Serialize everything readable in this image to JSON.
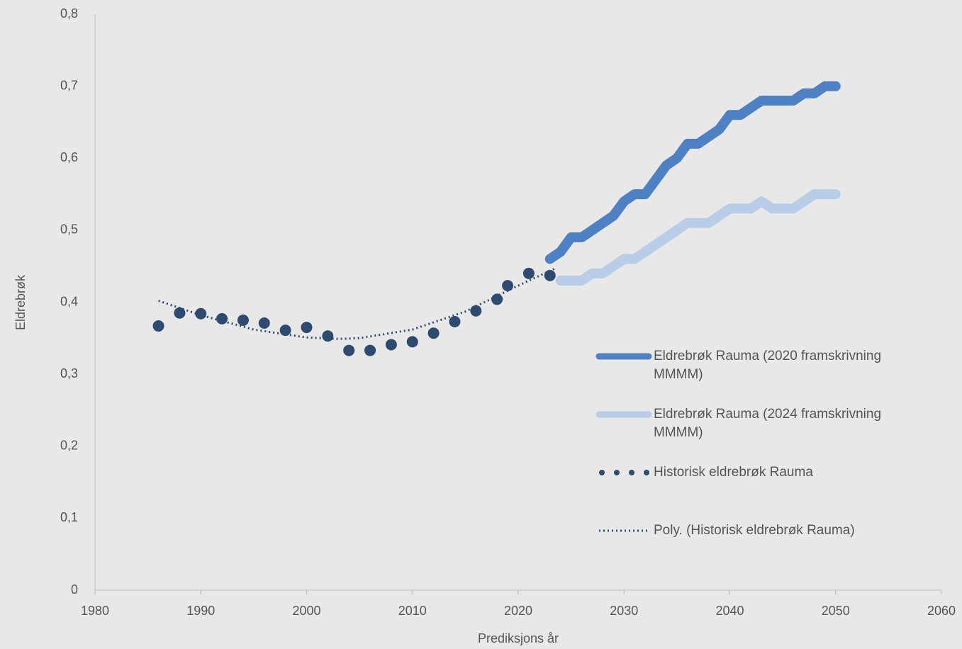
{
  "chart_data": {
    "type": "line",
    "x_label": "Prediksjons år",
    "y_label": "Eldrebrøk",
    "xlim": [
      1980,
      2060
    ],
    "xticks": [
      1980,
      1990,
      2000,
      2010,
      2020,
      2030,
      2040,
      2050,
      2060
    ],
    "ylim": [
      0,
      0.8
    ],
    "yticks": [
      0,
      {
        "value": 0.1,
        "label": "0,1"
      },
      {
        "value": 0.2,
        "label": "0,2"
      },
      {
        "value": 0.3,
        "label": "0,3"
      },
      {
        "value": 0.4,
        "label": "0,4"
      },
      {
        "value": 0.5,
        "label": "0,5"
      },
      {
        "value": 0.6,
        "label": "0,6"
      },
      {
        "value": 0.7,
        "label": "0,7"
      },
      {
        "value": 0.8,
        "label": "0,8"
      }
    ],
    "grid": false,
    "legend": "right",
    "series": [
      {
        "name": "Eldrebrøk Rauma (2020 framskrivning MMMM)",
        "color": "#4e81c4",
        "style": "solid",
        "x": [
          2023,
          2024,
          2025,
          2026,
          2027,
          2028,
          2029,
          2030,
          2031,
          2032,
          2033,
          2034,
          2035,
          2036,
          2037,
          2038,
          2039,
          2040,
          2041,
          2042,
          2043,
          2044,
          2045,
          2046,
          2047,
          2048,
          2049,
          2050
        ],
        "values": [
          0.46,
          0.47,
          0.49,
          0.49,
          0.5,
          0.51,
          0.52,
          0.54,
          0.55,
          0.55,
          0.57,
          0.59,
          0.6,
          0.62,
          0.62,
          0.63,
          0.64,
          0.66,
          0.66,
          0.67,
          0.68,
          0.68,
          0.68,
          0.68,
          0.69,
          0.69,
          0.7,
          0.7
        ]
      },
      {
        "name": "Eldrebrøk Rauma (2024 framskrivning MMMM)",
        "color": "#b9cde8",
        "style": "solid",
        "x": [
          2024,
          2025,
          2026,
          2027,
          2028,
          2029,
          2030,
          2031,
          2032,
          2033,
          2034,
          2035,
          2036,
          2037,
          2038,
          2039,
          2040,
          2041,
          2042,
          2043,
          2044,
          2045,
          2046,
          2047,
          2048,
          2049,
          2050
        ],
        "values": [
          0.43,
          0.43,
          0.43,
          0.44,
          0.44,
          0.45,
          0.46,
          0.46,
          0.47,
          0.48,
          0.49,
          0.5,
          0.51,
          0.51,
          0.51,
          0.52,
          0.53,
          0.53,
          0.53,
          0.54,
          0.53,
          0.53,
          0.53,
          0.54,
          0.55,
          0.55,
          0.55
        ]
      },
      {
        "name": "Historisk eldrebrøk Rauma",
        "color": "#2e4a6e",
        "style": "markers",
        "x": [
          1986,
          1988,
          1990,
          1992,
          1994,
          1996,
          1998,
          2000,
          2002,
          2004,
          2006,
          2008,
          2010,
          2012,
          2014,
          2016,
          2018,
          2019,
          2021,
          2023
        ],
        "values": [
          0.367,
          0.385,
          0.384,
          0.377,
          0.375,
          0.371,
          0.361,
          0.365,
          0.353,
          0.333,
          0.333,
          0.341,
          0.345,
          0.357,
          0.373,
          0.388,
          0.404,
          0.423,
          0.44,
          0.437
        ]
      },
      {
        "name": "Poly. (Historisk eldrebrøk Rauma)",
        "color": "#2e4a6e",
        "style": "dotted",
        "x": [
          1986,
          1990,
          1995,
          2000,
          2003,
          2005,
          2010,
          2015,
          2020,
          2023.5
        ],
        "values": [
          0.402,
          0.382,
          0.362,
          0.351,
          0.349,
          0.35,
          0.362,
          0.387,
          0.423,
          0.447
        ]
      }
    ]
  }
}
